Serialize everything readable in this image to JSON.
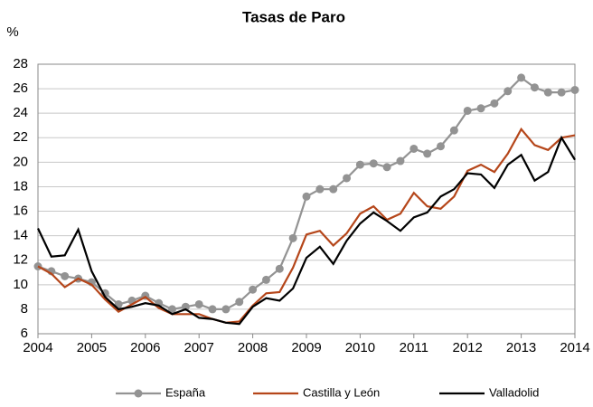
{
  "chart_data": {
    "type": "line",
    "title": "Tasas de Paro",
    "y_label": "%",
    "x": [
      2004,
      2004.25,
      2004.5,
      2004.75,
      2005,
      2005.25,
      2005.5,
      2005.75,
      2006,
      2006.25,
      2006.5,
      2006.75,
      2007,
      2007.25,
      2007.5,
      2007.75,
      2008,
      2008.25,
      2008.5,
      2008.75,
      2009,
      2009.25,
      2009.5,
      2009.75,
      2010,
      2010.25,
      2010.5,
      2010.75,
      2011,
      2011.25,
      2011.5,
      2011.75,
      2012,
      2012.25,
      2012.5,
      2012.75,
      2013,
      2013.25,
      2013.5,
      2013.75,
      2014
    ],
    "series": [
      {
        "name": "España",
        "color": "#939393",
        "marker": "circle",
        "values": [
          11.5,
          11.1,
          10.7,
          10.5,
          10.2,
          9.3,
          8.4,
          8.7,
          9.1,
          8.5,
          8.0,
          8.2,
          8.4,
          8.0,
          8.0,
          8.6,
          9.6,
          10.4,
          11.3,
          13.8,
          17.2,
          17.8,
          17.8,
          18.7,
          19.8,
          19.9,
          19.6,
          20.1,
          21.1,
          20.7,
          21.3,
          22.6,
          24.2,
          24.4,
          24.8,
          25.8,
          26.9,
          26.1,
          25.7,
          25.7,
          25.9
        ]
      },
      {
        "name": "Castilla y León",
        "color": "#b5461a",
        "values": [
          11.5,
          10.9,
          9.8,
          10.5,
          10.0,
          8.8,
          7.8,
          8.4,
          9.0,
          8.1,
          7.6,
          7.6,
          7.6,
          7.2,
          6.9,
          7.0,
          8.3,
          9.3,
          9.4,
          11.4,
          14.1,
          14.4,
          13.2,
          14.2,
          15.8,
          16.4,
          15.3,
          15.8,
          17.5,
          16.4,
          16.2,
          17.2,
          19.3,
          19.8,
          19.2,
          20.7,
          22.7,
          21.4,
          21.0,
          22.0,
          22.2
        ]
      },
      {
        "name": "Valladolid",
        "color": "#000000",
        "values": [
          14.6,
          12.3,
          12.4,
          14.5,
          11.1,
          9.0,
          8.0,
          8.2,
          8.5,
          8.3,
          7.6,
          8.0,
          7.3,
          7.2,
          6.9,
          6.8,
          8.2,
          8.9,
          8.7,
          9.7,
          12.2,
          13.1,
          11.7,
          13.6,
          15.0,
          15.9,
          15.2,
          14.4,
          15.5,
          15.9,
          17.2,
          17.8,
          19.1,
          19.0,
          17.9,
          19.8,
          20.6,
          18.5,
          19.2,
          22.0,
          20.2
        ]
      }
    ],
    "xlim": [
      2004,
      2014
    ],
    "xticks": [
      2004,
      2005,
      2006,
      2007,
      2008,
      2009,
      2010,
      2011,
      2012,
      2013,
      2014
    ],
    "ylim": [
      6,
      28
    ],
    "yticks": [
      6,
      8,
      10,
      12,
      14,
      16,
      18,
      20,
      22,
      24,
      26,
      28
    ],
    "grid": true,
    "legend": "bottom"
  }
}
